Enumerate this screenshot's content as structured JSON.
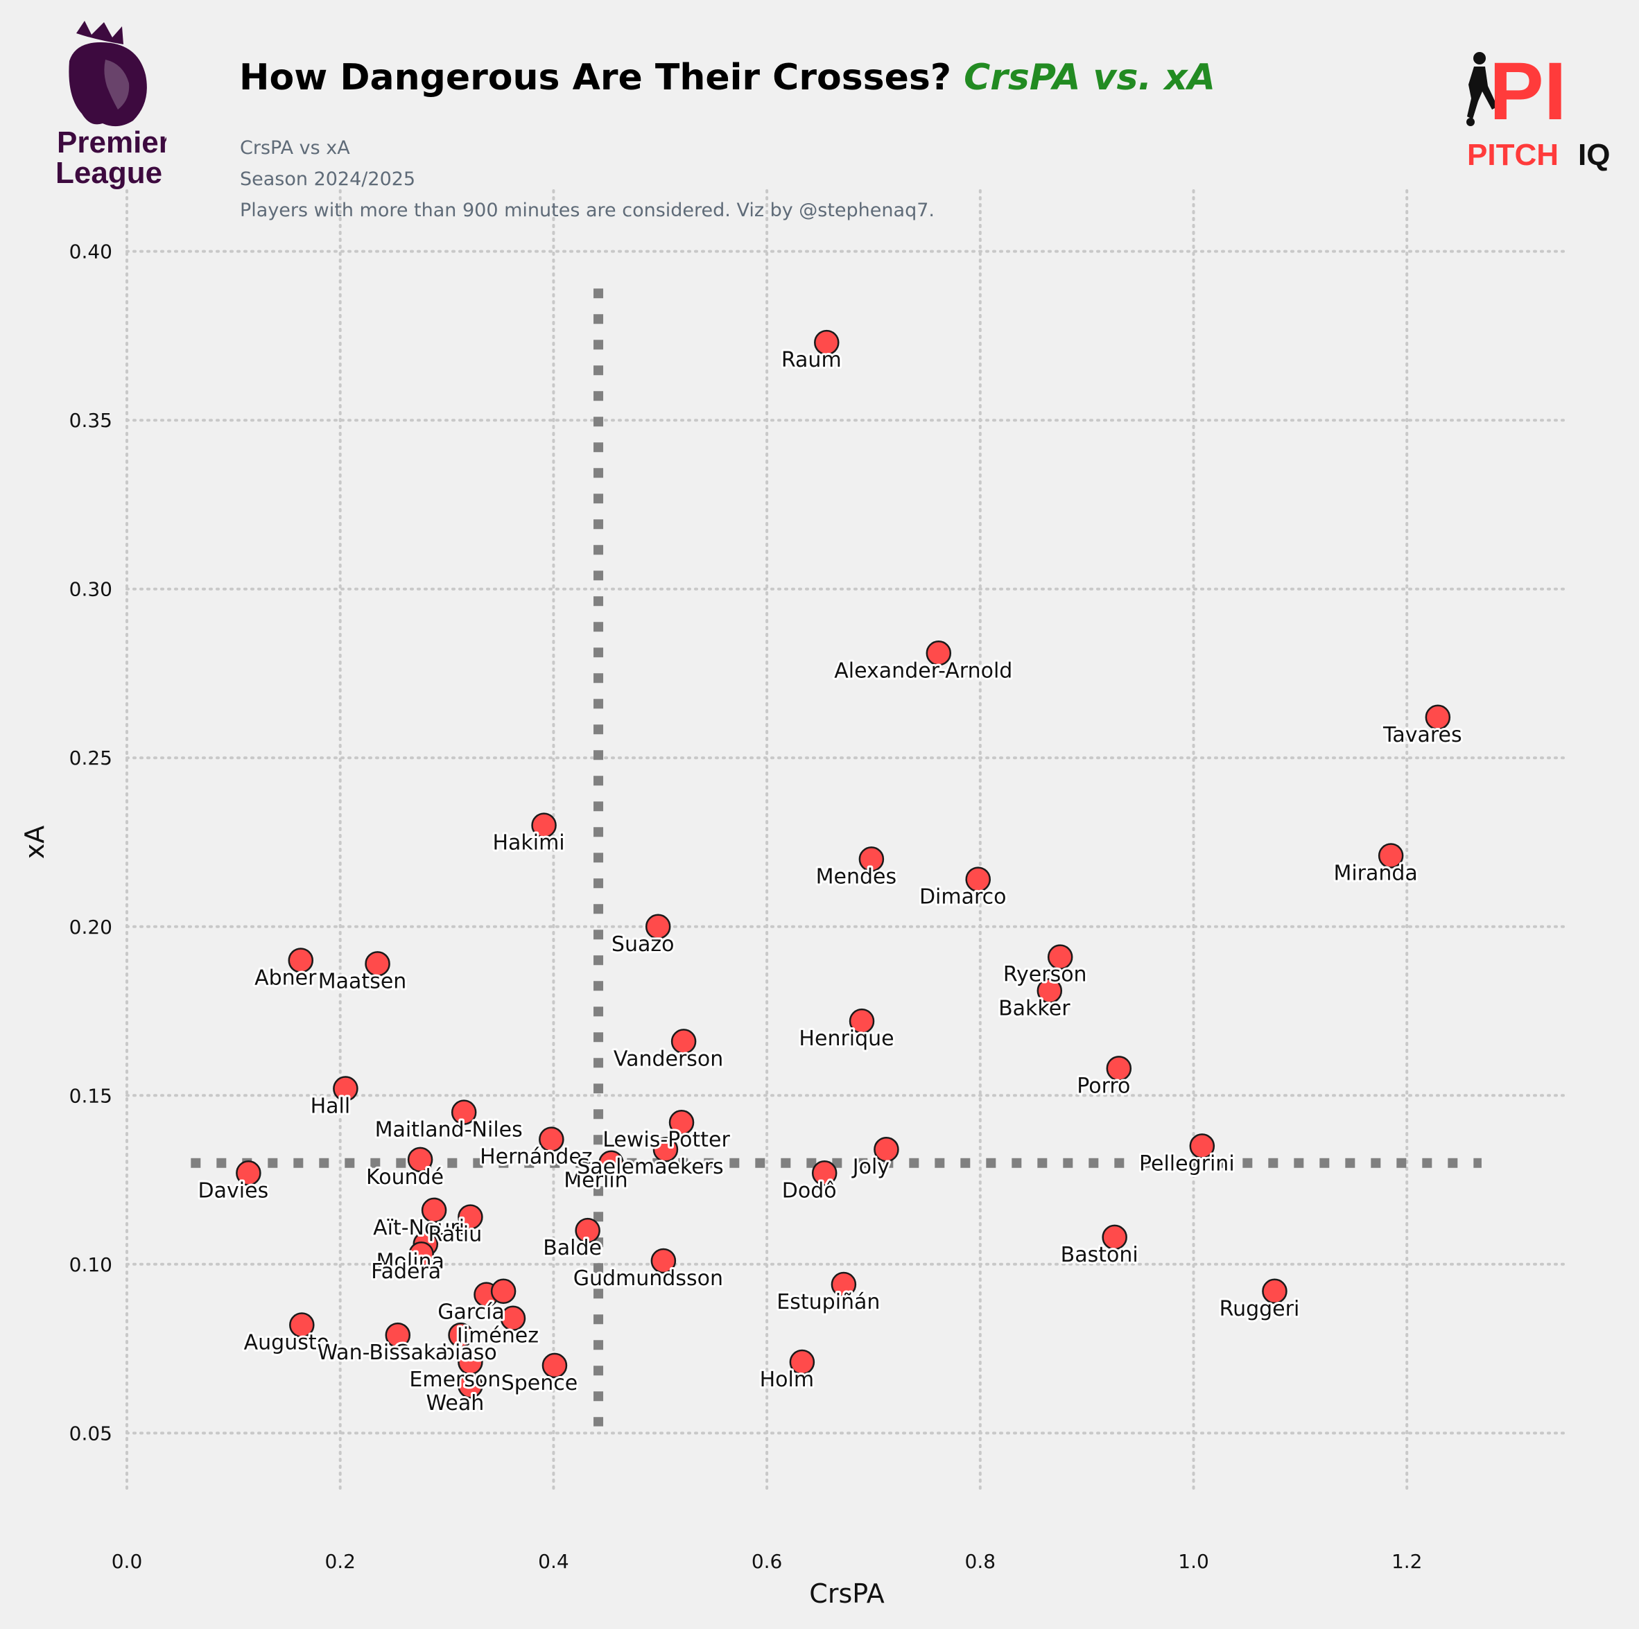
{
  "header": {
    "title_main": "How Dangerous Are Their Crosses?",
    "title_accent": "CrsPA vs. xA",
    "subtitle_lines": [
      "CrsPA vs xA",
      "Season 2024/2025",
      "Players with more than 900 minutes are considered. Viz by @stephenaq7."
    ]
  },
  "logos": {
    "left": {
      "icon": "premier-league-lion-logo",
      "line1": "Premier",
      "line2": "League",
      "color": "#3d0a3f"
    },
    "right": {
      "icon": "pitch-iq-player-logo",
      "mark": "PI",
      "word1": "PITCH",
      "word2": "IQ",
      "accent": "#ff3b3b",
      "dark": "#111111"
    }
  },
  "colors": {
    "background": "#f0f0f0",
    "point_fill": "#ff4b4b",
    "point_edge": "#1a1a1a",
    "grid": "#c8c8c8",
    "ref_line": "#808080",
    "accent_title": "#228b22"
  },
  "chart_data": {
    "type": "scatter",
    "xlabel": "CrsPA",
    "ylabel": "xA",
    "xlim": [
      0.0,
      1.35
    ],
    "ylim": [
      0.032,
      0.418
    ],
    "xticks": [
      0.0,
      0.2,
      0.4,
      0.6,
      0.8,
      1.0,
      1.2
    ],
    "xtick_labels": [
      "0.0",
      "0.2",
      "0.4",
      "0.6",
      "0.8",
      "1.0",
      "1.2"
    ],
    "yticks": [
      0.05,
      0.1,
      0.15,
      0.2,
      0.25,
      0.3,
      0.35,
      0.4
    ],
    "ytick_labels": [
      "0.05",
      "0.10",
      "0.15",
      "0.20",
      "0.25",
      "0.30",
      "0.35",
      "0.40"
    ],
    "grid": true,
    "reference_lines": {
      "vertical_x": 0.442,
      "vertical_y_range": [
        0.052,
        0.389
      ],
      "horizontal_y": 0.13,
      "horizontal_x_range": [
        0.06,
        1.27
      ]
    },
    "points": [
      {
        "name": "Raum",
        "x": 0.656,
        "y": 0.373
      },
      {
        "name": "Alexander-Arnold",
        "x": 0.761,
        "y": 0.281
      },
      {
        "name": "Tavares",
        "x": 1.229,
        "y": 0.262
      },
      {
        "name": "Hakimi",
        "x": 0.391,
        "y": 0.23
      },
      {
        "name": "Mendes",
        "x": 0.698,
        "y": 0.22
      },
      {
        "name": "Miranda",
        "x": 1.185,
        "y": 0.221
      },
      {
        "name": "Dimarco",
        "x": 0.798,
        "y": 0.214
      },
      {
        "name": "Suazo",
        "x": 0.498,
        "y": 0.2
      },
      {
        "name": "Ryerson",
        "x": 0.875,
        "y": 0.191
      },
      {
        "name": "Abner",
        "x": 0.163,
        "y": 0.19
      },
      {
        "name": "Maatsen",
        "x": 0.235,
        "y": 0.189
      },
      {
        "name": "Bakker",
        "x": 0.865,
        "y": 0.181
      },
      {
        "name": "Henrique",
        "x": 0.689,
        "y": 0.172
      },
      {
        "name": "Vanderson",
        "x": 0.522,
        "y": 0.166
      },
      {
        "name": "Porro",
        "x": 0.93,
        "y": 0.158
      },
      {
        "name": "Hall",
        "x": 0.205,
        "y": 0.152
      },
      {
        "name": "Maitland-Niles",
        "x": 0.316,
        "y": 0.145
      },
      {
        "name": "Lewis-Potter",
        "x": 0.52,
        "y": 0.142
      },
      {
        "name": "Hernández",
        "x": 0.398,
        "y": 0.137
      },
      {
        "name": "Joly",
        "x": 0.712,
        "y": 0.134
      },
      {
        "name": "Pellegrini",
        "x": 1.008,
        "y": 0.135
      },
      {
        "name": "Koundé",
        "x": 0.275,
        "y": 0.131
      },
      {
        "name": "Merlin",
        "x": 0.454,
        "y": 0.13
      },
      {
        "name": "Saelemaekers",
        "x": 0.505,
        "y": 0.134
      },
      {
        "name": "Dodô",
        "x": 0.654,
        "y": 0.127
      },
      {
        "name": "Davies",
        "x": 0.114,
        "y": 0.127
      },
      {
        "name": "Aït-Nouri",
        "x": 0.288,
        "y": 0.116
      },
      {
        "name": "Ratiu",
        "x": 0.322,
        "y": 0.114
      },
      {
        "name": "Balde",
        "x": 0.432,
        "y": 0.11
      },
      {
        "name": "Bastoni",
        "x": 0.926,
        "y": 0.108
      },
      {
        "name": "Molina",
        "x": 0.28,
        "y": 0.106
      },
      {
        "name": "Fadera",
        "x": 0.276,
        "y": 0.103
      },
      {
        "name": "Gudmundsson",
        "x": 0.503,
        "y": 0.101
      },
      {
        "name": "Estupiñán",
        "x": 0.672,
        "y": 0.094
      },
      {
        "name": "Ruggeri",
        "x": 1.076,
        "y": 0.092
      },
      {
        "name": "García",
        "x": 0.337,
        "y": 0.091
      },
      {
        "name": "Gudmundsson-b",
        "label": "",
        "x": 0.353,
        "y": 0.092
      },
      {
        "name": "Jiménez",
        "x": 0.362,
        "y": 0.084
      },
      {
        "name": "Augusto",
        "x": 0.164,
        "y": 0.082
      },
      {
        "name": "Cambiaso",
        "x": 0.313,
        "y": 0.079
      },
      {
        "name": "Wan-Bissaka",
        "x": 0.254,
        "y": 0.079
      },
      {
        "name": "Emerson",
        "x": 0.322,
        "y": 0.071
      },
      {
        "name": "Holm",
        "x": 0.633,
        "y": 0.071
      },
      {
        "name": "Spence",
        "x": 0.401,
        "y": 0.07
      },
      {
        "name": "Weah",
        "x": 0.322,
        "y": 0.064
      }
    ]
  }
}
